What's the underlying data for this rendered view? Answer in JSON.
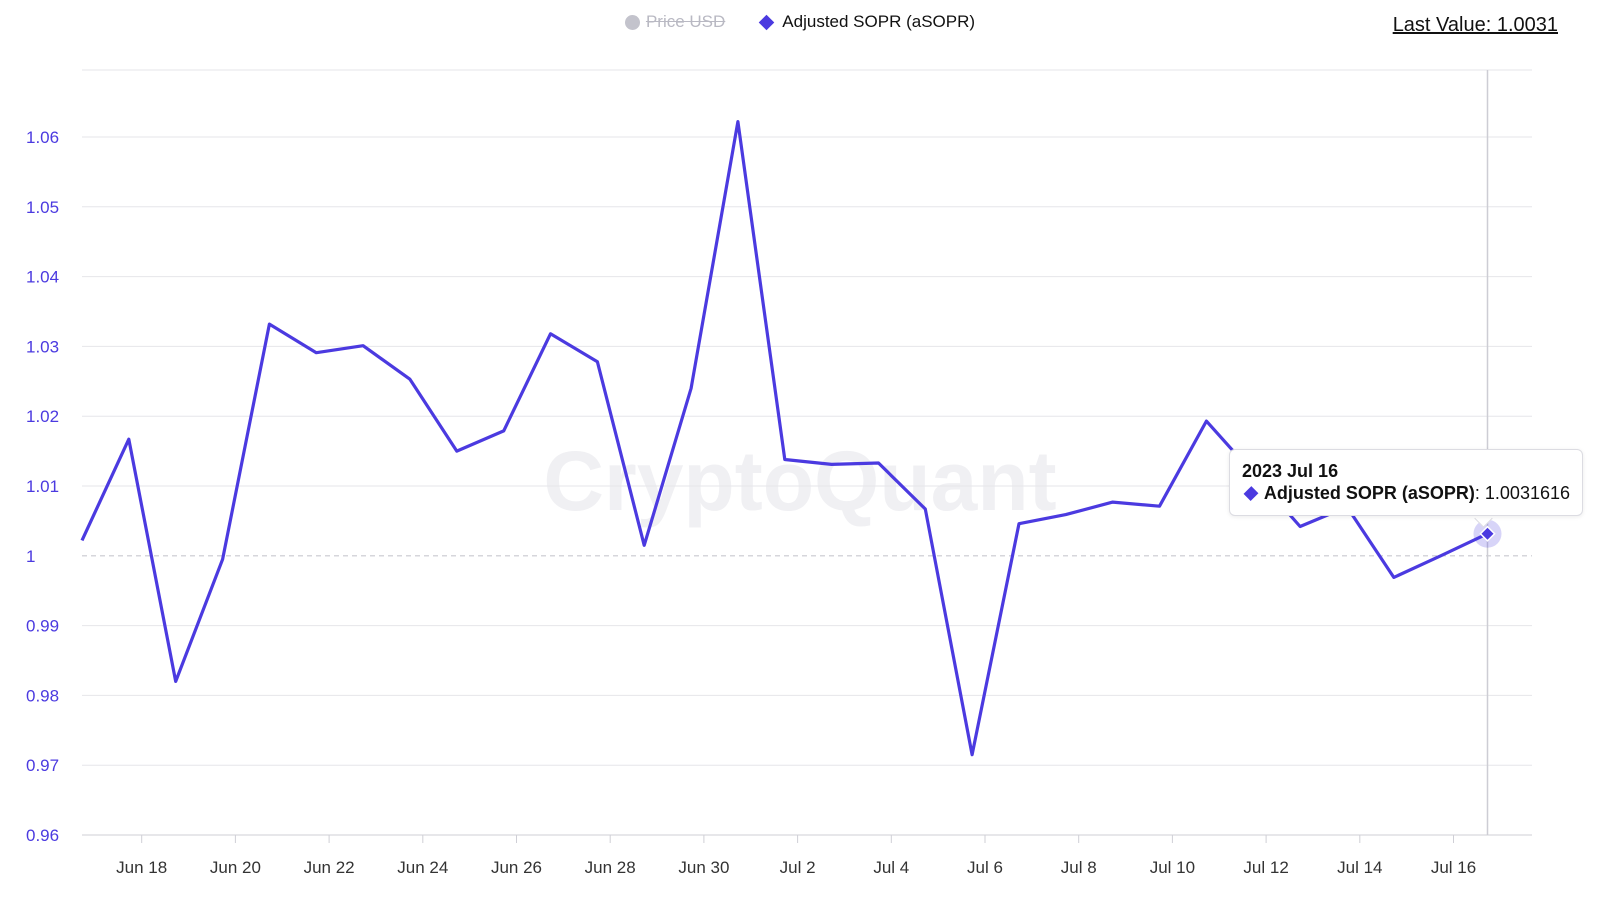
{
  "legend": {
    "price_label": "Price USD",
    "asopr_label": "Adjusted SOPR (aSOPR)"
  },
  "last_value": "Last Value: 1.0031",
  "watermark": "CryptoQuant",
  "tooltip": {
    "date": "2023 Jul 16",
    "series_name": "Adjusted SOPR (aSOPR)",
    "value": ": 1.0031616"
  },
  "colors": {
    "series": "#4b3ae0",
    "legend_disabled": "#c3c3cc",
    "grid": "#e6e6ea"
  },
  "chart_data": {
    "type": "line",
    "ylim": [
      0.96,
      1.065
    ],
    "y_ticks": [
      "1.06",
      "1.05",
      "1.04",
      "1.03",
      "1.02",
      "1.01",
      "1",
      "0.99",
      "0.98",
      "0.97",
      "0.96"
    ],
    "y_tick_values": [
      1.06,
      1.05,
      1.04,
      1.03,
      1.02,
      1.01,
      1.0,
      0.99,
      0.98,
      0.97,
      0.96
    ],
    "x_ticks": [
      "Jun 18",
      "Jun 20",
      "Jun 22",
      "Jun 24",
      "Jun 26",
      "Jun 28",
      "Jun 30",
      "Jul 2",
      "Jul 4",
      "Jul 6",
      "Jul 8",
      "Jul 10",
      "Jul 12",
      "Jul 14",
      "Jul 16"
    ],
    "reference_line": 1.0,
    "series": [
      {
        "name": "Adjusted SOPR (aSOPR)",
        "x": [
          "2023-06-16",
          "2023-06-17",
          "2023-06-18",
          "2023-06-19",
          "2023-06-20",
          "2023-06-21",
          "2023-06-22",
          "2023-06-23",
          "2023-06-24",
          "2023-06-25",
          "2023-06-26",
          "2023-06-27",
          "2023-06-28",
          "2023-06-29",
          "2023-06-30",
          "2023-07-01",
          "2023-07-02",
          "2023-07-03",
          "2023-07-04",
          "2023-07-05",
          "2023-07-06",
          "2023-07-07",
          "2023-07-08",
          "2023-07-09",
          "2023-07-10",
          "2023-07-11",
          "2023-07-12",
          "2023-07-13",
          "2023-07-14",
          "2023-07-15",
          "2023-07-16"
        ],
        "values": [
          1.0022,
          1.0167,
          0.982,
          0.9995,
          1.0332,
          1.0291,
          1.0301,
          1.0253,
          1.015,
          1.0179,
          1.0318,
          1.0278,
          1.0015,
          1.024,
          1.0622,
          1.0138,
          1.0131,
          1.0133,
          1.0067,
          0.9715,
          1.0046,
          1.0059,
          1.0077,
          1.0071,
          1.0193,
          1.0118,
          1.0042,
          1.007,
          0.9969,
          1.0,
          1.0031616
        ]
      }
    ]
  }
}
